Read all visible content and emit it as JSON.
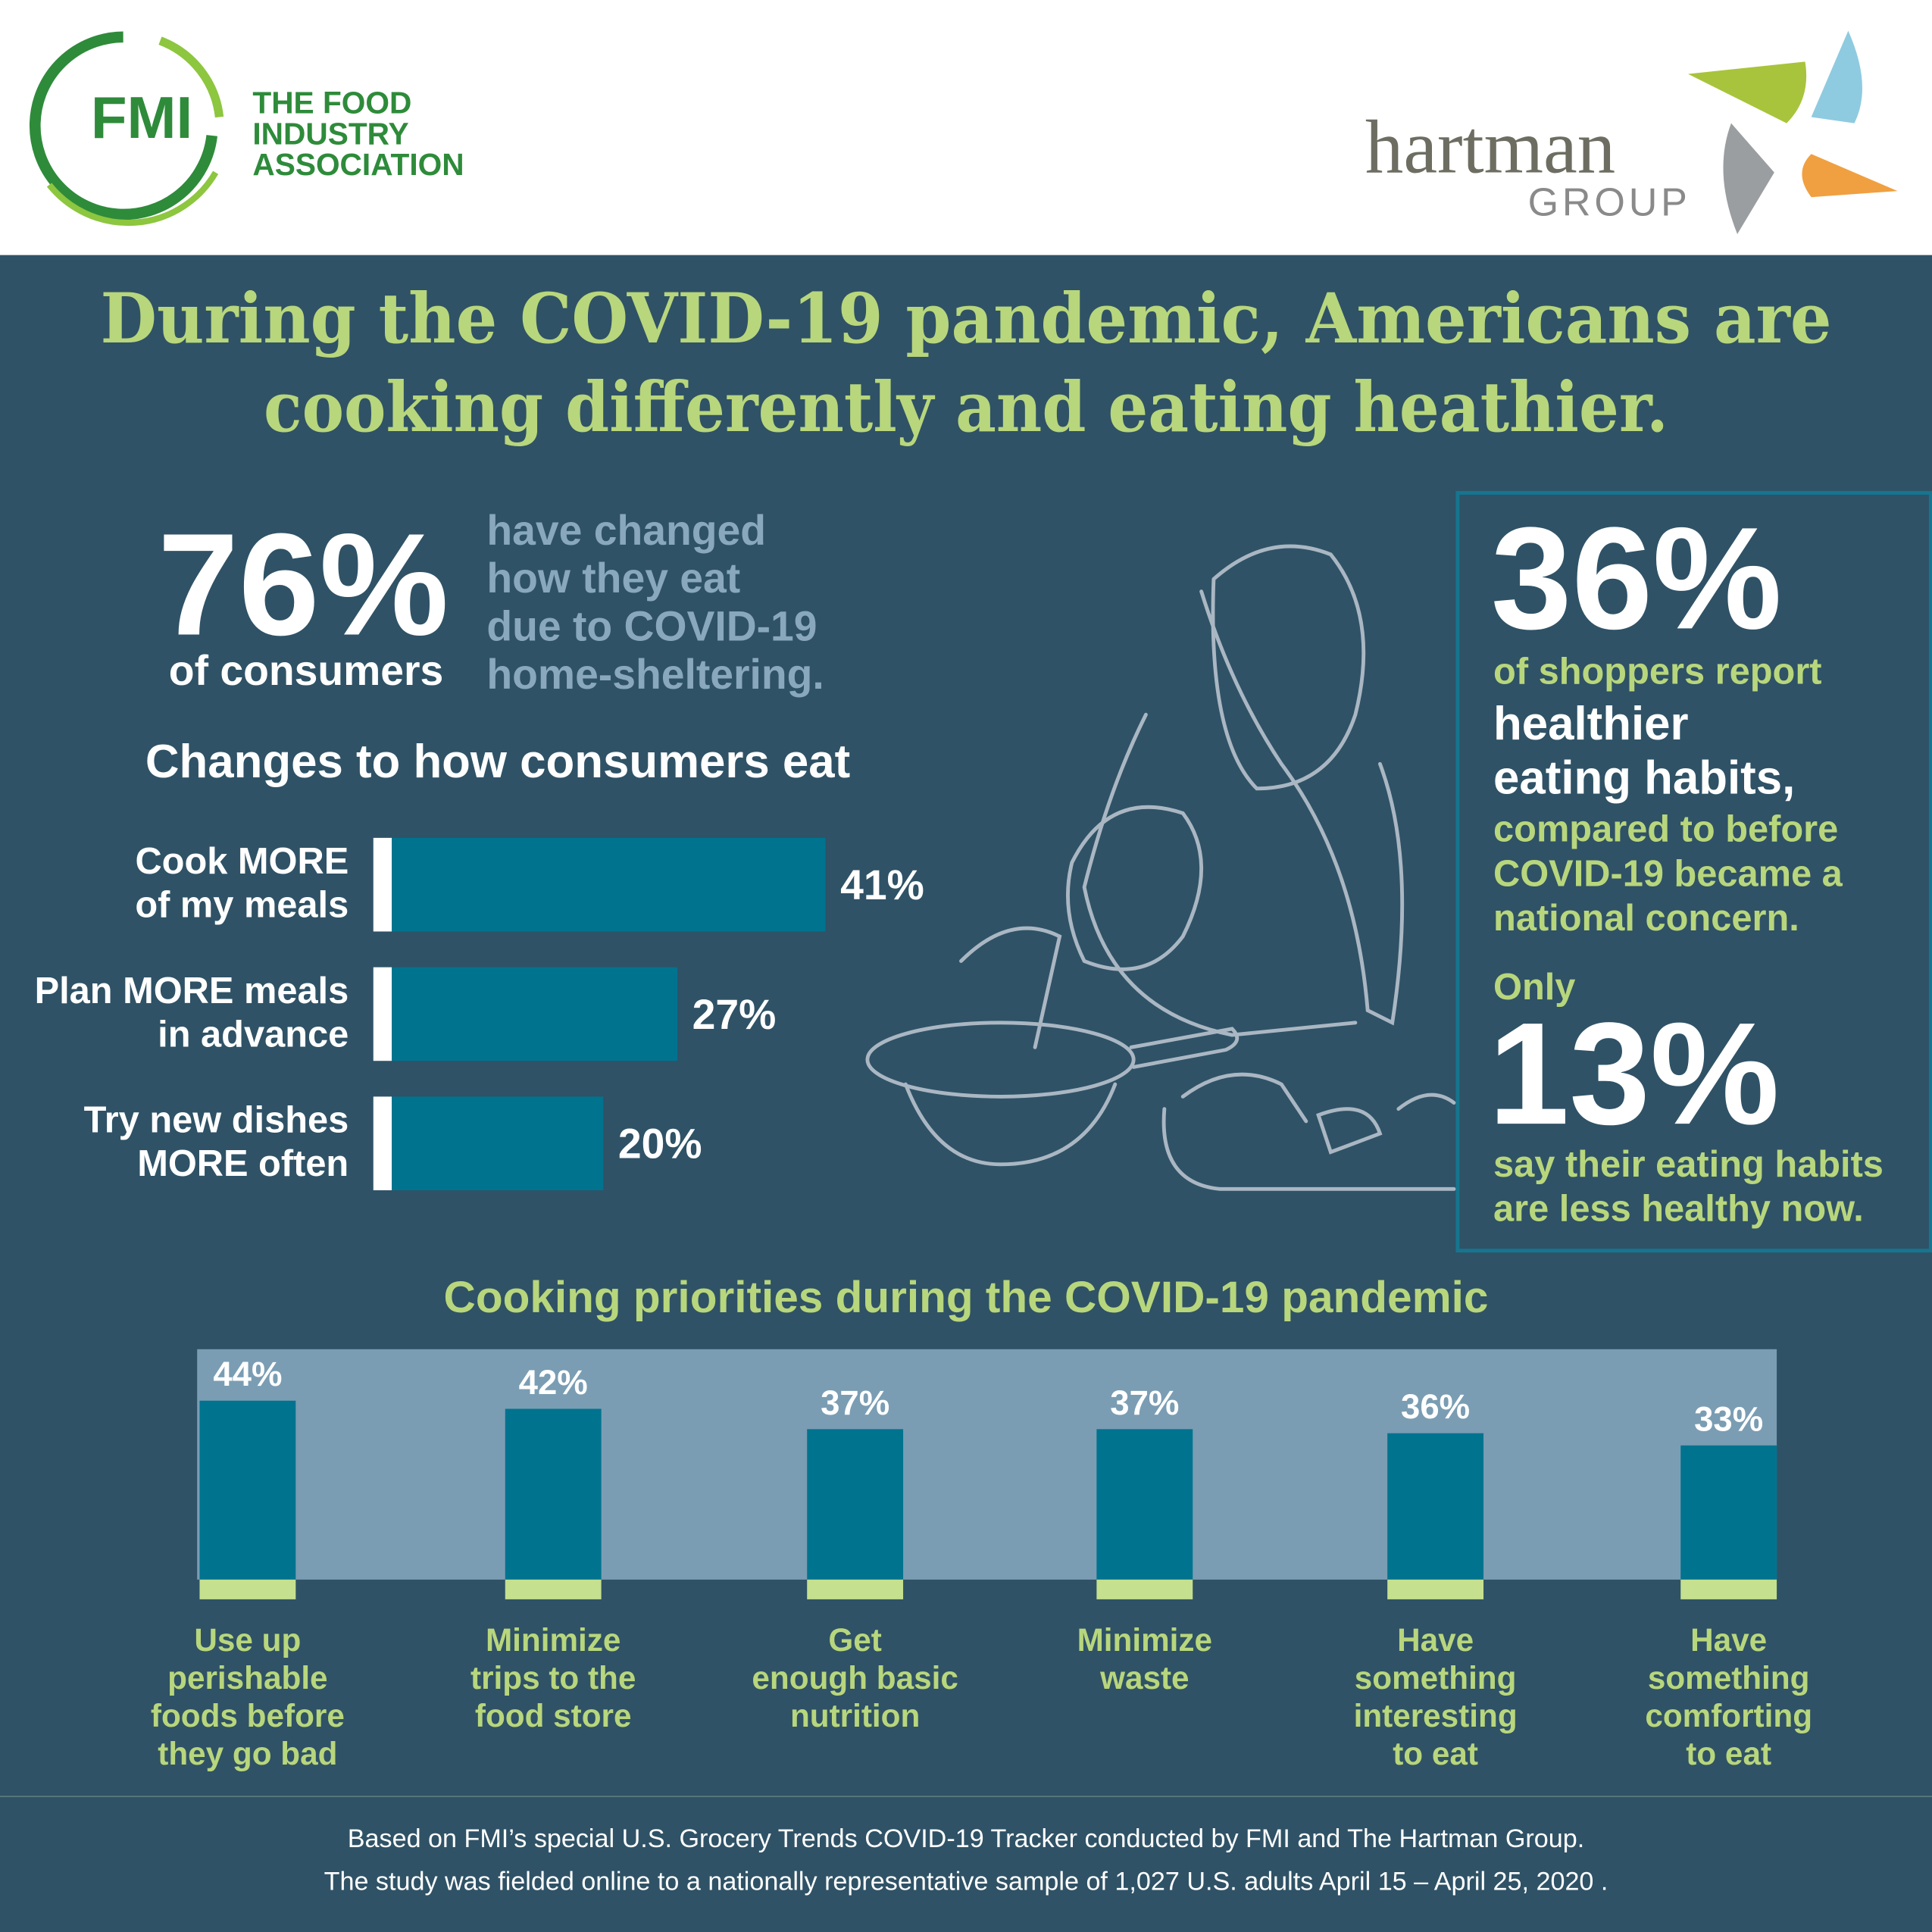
{
  "header": {
    "fmi_logo": "FMI",
    "fmi_name": [
      "THE FOOD",
      "INDUSTRY",
      "ASSOCIATION"
    ],
    "hartman": "hartman",
    "hartman_group": "GROUP"
  },
  "headline": [
    "During the COVID-19 pandemic, Americans are",
    "cooking differently and eating heathier."
  ],
  "lead_stat": {
    "value": "76%",
    "label": "of consumers",
    "description": [
      "have changed",
      "how they eat",
      "due to COVID-19",
      "home-sheltering."
    ]
  },
  "side_box": {
    "stat": "36%",
    "lines_before": [
      "of shoppers report"
    ],
    "emphasis": [
      "healthier",
      "eating habits,"
    ],
    "lines_after": [
      "compared to before",
      "COVID-19 became a",
      "national concern."
    ],
    "only": "Only",
    "stat2": "13%",
    "lines2": [
      "say their eating habits",
      "are less healthy now."
    ]
  },
  "chart_data": [
    {
      "type": "barh",
      "title": "Changes to how consumers eat",
      "categories": [
        "Cook MORE\nof my meals",
        "Plan MORE meals\nin advance",
        "Try new dishes\nMORE often"
      ],
      "values": [
        41,
        27,
        20
      ],
      "value_labels": [
        "41%",
        "27%",
        "20%"
      ],
      "color": "#00738f"
    },
    {
      "type": "bar",
      "title": "Cooking priorities during the COVID-19 pandemic",
      "categories": [
        "Use up\nperishable\nfoods before\nthey go bad",
        "Minimize\ntrips to the\nfood store",
        "Get\nenough basic\nnutrition",
        "Minimize\nwaste",
        "Have\nsomething\ninteresting\nto eat",
        "Have\nsomething\ncomforting\nto eat"
      ],
      "values": [
        44,
        42,
        37,
        37,
        36,
        33
      ],
      "value_labels": [
        "44%",
        "42%",
        "37%",
        "37%",
        "36%",
        "33%"
      ],
      "color": "#00738f"
    }
  ],
  "footer": [
    "Based on FMI’s special U.S. Grocery Trends COVID-19 Tracker conducted by FMI and The Hartman Group.",
    "The study was fielded online to a nationally representative sample of 1,027 U.S. adults April 15 – April 25, 2020 ."
  ]
}
